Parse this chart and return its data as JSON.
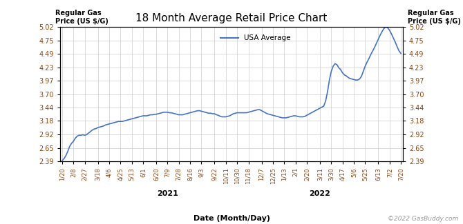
{
  "title": "18 Month Average Retail Price Chart",
  "ylabel_left_line1": "Regular Gas",
  "ylabel_left_line2": "Price (US $/G)",
  "ylabel_right_line1": "Regular Gas",
  "ylabel_right_line2": "Price (US $/G)",
  "xlabel": "Date (Month/Day)",
  "watermark": "©2022 GasBuddy.com",
  "legend_label": "USA Average",
  "line_color": "#4472C4",
  "yticks": [
    2.39,
    2.65,
    2.92,
    3.18,
    3.44,
    3.7,
    3.97,
    4.23,
    4.49,
    4.75,
    5.02
  ],
  "xtick_labels": [
    "1/20",
    "2/8",
    "2/27",
    "3/18",
    "4/6",
    "4/25",
    "5/13",
    "6/1",
    "6/20",
    "7/9",
    "7/28",
    "8/16",
    "9/3",
    "9/22",
    "10/11",
    "10/30",
    "11/18",
    "12/7",
    "12/25",
    "1/13",
    "2/1",
    "2/20",
    "3/11",
    "3/30",
    "4/17",
    "5/6",
    "5/25",
    "6/13",
    "7/2",
    "7/20"
  ],
  "year_label_2021_idx": 9,
  "year_label_2022_idx": 22,
  "data": [
    2.4,
    2.44,
    2.5,
    2.58,
    2.68,
    2.74,
    2.78,
    2.84,
    2.88,
    2.9,
    2.9,
    2.91,
    2.9,
    2.91,
    2.94,
    2.97,
    3.0,
    3.02,
    3.03,
    3.05,
    3.06,
    3.07,
    3.08,
    3.1,
    3.11,
    3.12,
    3.13,
    3.14,
    3.15,
    3.16,
    3.17,
    3.17,
    3.17,
    3.18,
    3.19,
    3.2,
    3.21,
    3.22,
    3.23,
    3.24,
    3.25,
    3.26,
    3.27,
    3.28,
    3.28,
    3.28,
    3.29,
    3.3,
    3.3,
    3.31,
    3.31,
    3.32,
    3.33,
    3.34,
    3.35,
    3.35,
    3.35,
    3.34,
    3.34,
    3.33,
    3.32,
    3.31,
    3.3,
    3.3,
    3.3,
    3.31,
    3.32,
    3.33,
    3.34,
    3.35,
    3.36,
    3.37,
    3.38,
    3.38,
    3.37,
    3.36,
    3.35,
    3.34,
    3.33,
    3.33,
    3.32,
    3.32,
    3.3,
    3.29,
    3.27,
    3.26,
    3.26,
    3.26,
    3.27,
    3.28,
    3.3,
    3.32,
    3.33,
    3.34,
    3.34,
    3.34,
    3.34,
    3.34,
    3.34,
    3.35,
    3.36,
    3.37,
    3.38,
    3.39,
    3.4,
    3.4,
    3.38,
    3.36,
    3.34,
    3.32,
    3.31,
    3.3,
    3.29,
    3.28,
    3.27,
    3.26,
    3.25,
    3.24,
    3.24,
    3.24,
    3.25,
    3.26,
    3.27,
    3.28,
    3.28,
    3.27,
    3.26,
    3.26,
    3.26,
    3.27,
    3.29,
    3.31,
    3.33,
    3.35,
    3.37,
    3.39,
    3.41,
    3.43,
    3.45,
    3.47,
    3.57,
    3.75,
    3.98,
    4.15,
    4.25,
    4.3,
    4.28,
    4.22,
    4.18,
    4.12,
    4.08,
    4.06,
    4.03,
    4.01,
    4.0,
    3.99,
    3.98,
    3.98,
    4.0,
    4.05,
    4.15,
    4.25,
    4.33,
    4.4,
    4.48,
    4.55,
    4.62,
    4.7,
    4.78,
    4.86,
    4.93,
    4.99,
    5.02,
    5.0,
    4.95,
    4.88,
    4.8,
    4.72,
    4.63,
    4.55,
    4.5
  ],
  "ylim": [
    2.39,
    5.02
  ],
  "background_color": "#ffffff",
  "grid_color": "#cccccc",
  "title_fontsize": 11,
  "tick_label_color": "#8B4513",
  "axis_label_color": "#000000",
  "watermark_color": "#999999"
}
